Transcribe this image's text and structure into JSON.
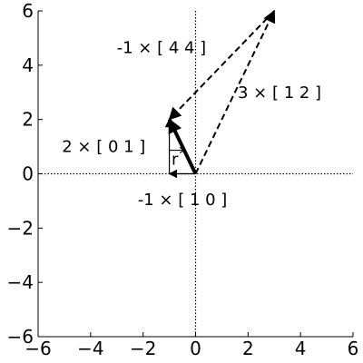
{
  "chart_data": {
    "type": "vector-diagram",
    "xlim": [
      -6,
      6
    ],
    "ylim": [
      -6,
      6
    ],
    "x_ticks": [
      -6,
      -4,
      -2,
      0,
      2,
      4,
      6
    ],
    "y_ticks": [
      -6,
      -4,
      -2,
      0,
      2,
      4,
      6
    ],
    "x_tick_labels": [
      "−6",
      "−4",
      "−2",
      "0",
      "2",
      "4",
      "6"
    ],
    "y_tick_labels": [
      "−6",
      "−4",
      "−2",
      "0",
      "2",
      "4",
      "6"
    ],
    "grid": false,
    "axes_through_origin": "dotted",
    "dashed_vectors": [
      {
        "from": [
          0,
          0
        ],
        "to": [
          3,
          6
        ]
      },
      {
        "from": [
          3,
          6
        ],
        "to": [
          -1,
          2
        ]
      }
    ],
    "thin_vectors": [
      {
        "from": [
          0,
          0
        ],
        "to": [
          -1,
          0
        ]
      },
      {
        "from": [
          -1,
          0
        ],
        "to": [
          -1,
          2
        ]
      }
    ],
    "result_vector": {
      "from": [
        0,
        0
      ],
      "to": [
        -1,
        2
      ],
      "label": "r"
    },
    "annotations": [
      {
        "text": "-1 × [ 4  4 ]",
        "x": -1.3,
        "y": 4.65
      },
      {
        "text": "3 × [ 1  2 ]",
        "x": 3.2,
        "y": 3.0
      },
      {
        "text": "2 × [ 0  1 ]",
        "x": -3.5,
        "y": 1.0
      },
      {
        "text": "-1 × [ 1  0 ]",
        "x": -0.5,
        "y": -0.95
      }
    ]
  }
}
